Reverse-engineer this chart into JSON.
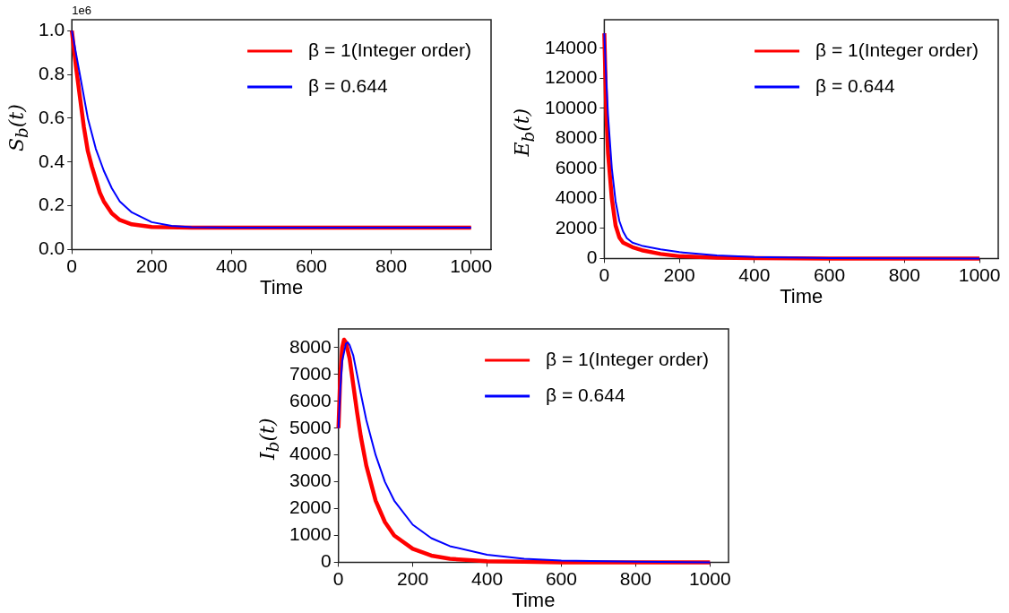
{
  "chart_data": [
    {
      "type": "line",
      "xlabel": "Time",
      "ylabel": "S$_{b}$(t)",
      "annotations": [
        "1e6"
      ],
      "legend": "top right",
      "grid": false,
      "xlim": [
        0,
        1050
      ],
      "xticks": [
        0,
        200,
        400,
        600,
        800,
        1000
      ],
      "ylim": [
        0,
        1.05
      ],
      "yticks": [
        {
          "value": 0,
          "label": "0.0"
        },
        {
          "value": 0.2,
          "label": "0.2"
        },
        {
          "value": 0.4,
          "label": "0.4"
        },
        {
          "value": 0.6,
          "label": "0.6"
        },
        {
          "value": 0.8,
          "label": "0.8"
        },
        {
          "value": 1,
          "label": "1.0"
        }
      ],
      "series": [
        {
          "name": "β = 1(Integer order)",
          "color": "#ff0000",
          "x": [
            0,
            10,
            20,
            30,
            40,
            50,
            60,
            70,
            80,
            100,
            120,
            150,
            200,
            300,
            500,
            1000
          ],
          "values": [
            1.0,
            0.84,
            0.7,
            0.56,
            0.45,
            0.38,
            0.32,
            0.26,
            0.22,
            0.165,
            0.135,
            0.115,
            0.103,
            0.1,
            0.1,
            0.1
          ]
        },
        {
          "name": "β = 0.644",
          "color": "#0000ff",
          "x": [
            0,
            10,
            20,
            30,
            40,
            50,
            60,
            70,
            80,
            100,
            120,
            150,
            200,
            250,
            300,
            400,
            600,
            1000
          ],
          "values": [
            1.0,
            0.9,
            0.8,
            0.7,
            0.6,
            0.53,
            0.46,
            0.41,
            0.36,
            0.28,
            0.22,
            0.17,
            0.125,
            0.108,
            0.102,
            0.1,
            0.1,
            0.1
          ]
        }
      ]
    },
    {
      "type": "line",
      "xlabel": "Time",
      "ylabel": "E$_{b}$(t)",
      "legend": "top right",
      "grid": false,
      "xlim": [
        0,
        1050
      ],
      "xticks": [
        0,
        200,
        400,
        600,
        800,
        1000
      ],
      "ylim": [
        0,
        15900
      ],
      "yticks": [
        0,
        2000,
        4000,
        6000,
        8000,
        10000,
        12000,
        14000
      ],
      "series": [
        {
          "name": "β = 1(Integer order)",
          "color": "#ff0000",
          "x": [
            0,
            5,
            10,
            20,
            30,
            40,
            50,
            75,
            100,
            150,
            200,
            300,
            400,
            600,
            1000
          ],
          "values": [
            15000,
            10000,
            7000,
            4000,
            2200,
            1400,
            1050,
            750,
            550,
            300,
            150,
            50,
            20,
            0,
            0
          ]
        },
        {
          "name": "β = 0.644",
          "color": "#0000ff",
          "x": [
            0,
            5,
            10,
            20,
            30,
            40,
            50,
            60,
            75,
            100,
            150,
            200,
            300,
            400,
            600,
            1000
          ],
          "values": [
            15000,
            12000,
            9500,
            6000,
            3800,
            2500,
            1800,
            1350,
            1050,
            850,
            600,
            420,
            200,
            100,
            30,
            0
          ]
        }
      ]
    },
    {
      "type": "line",
      "xlabel": "Time",
      "ylabel": "I$_{b}$(t)",
      "legend": "top right",
      "grid": false,
      "xlim": [
        0,
        1050
      ],
      "xticks": [
        0,
        200,
        400,
        600,
        800,
        1000
      ],
      "ylim": [
        0,
        8700
      ],
      "yticks": [
        0,
        1000,
        2000,
        3000,
        4000,
        5000,
        6000,
        7000,
        8000
      ],
      "series": [
        {
          "name": "β = 1(Integer order)",
          "color": "#ff0000",
          "x": [
            0,
            5,
            10,
            15,
            20,
            30,
            40,
            50,
            60,
            75,
            100,
            125,
            150,
            200,
            250,
            300,
            400,
            500,
            600,
            1000
          ],
          "values": [
            5000,
            7000,
            8000,
            8300,
            8200,
            7600,
            6600,
            5600,
            4700,
            3600,
            2300,
            1500,
            1000,
            500,
            250,
            130,
            40,
            20,
            0,
            0
          ]
        },
        {
          "name": "β = 0.644",
          "color": "#0000ff",
          "x": [
            0,
            5,
            10,
            20,
            25,
            30,
            40,
            50,
            60,
            75,
            100,
            125,
            150,
            200,
            250,
            300,
            400,
            500,
            600,
            800,
            1000
          ],
          "values": [
            5000,
            6500,
            7500,
            8150,
            8200,
            8100,
            7700,
            7000,
            6300,
            5300,
            4000,
            3000,
            2300,
            1400,
            900,
            600,
            280,
            130,
            60,
            20,
            0
          ]
        }
      ]
    }
  ]
}
